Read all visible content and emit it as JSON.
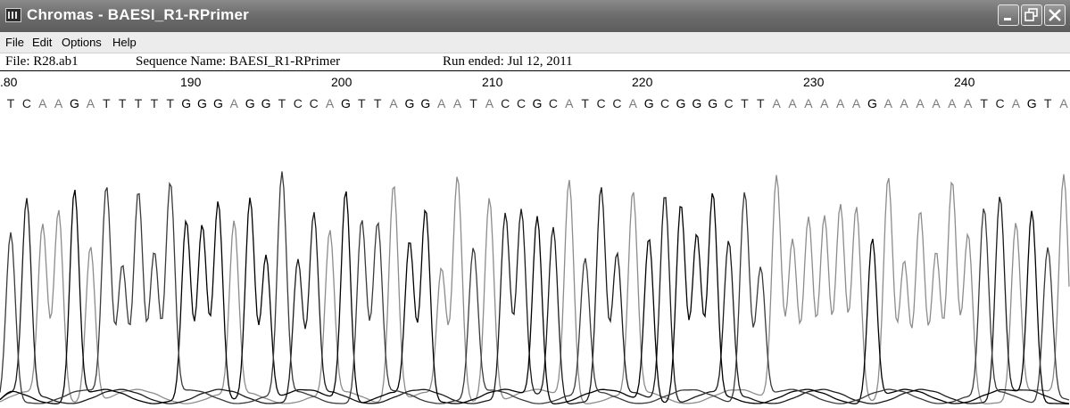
{
  "window": {
    "title": "Chromas - BAESI_R1-RPrimer",
    "icon": "chromas-app-icon",
    "controls": [
      "minimize-icon",
      "restore-icon",
      "close-icon"
    ]
  },
  "menu": [
    "File",
    "Edit",
    "Options",
    "Help"
  ],
  "info": {
    "file": "File: R28.ab1",
    "sequence_name": "Sequence Name: BAESI_R1-RPrimer",
    "run_ended": "Run ended: Jul 12, 2011"
  },
  "ruler": {
    "partial_label": ".80",
    "labels": [
      "190",
      "200",
      "210",
      "220",
      "230",
      "240"
    ]
  },
  "sequence": "TCAAGATTTTTGGGAGGTCCAGTTAGGAATACCGCATCCAGCGGGCTTAAAAAAGAAAAAATCAGTA",
  "colors": {
    "A": "#7a7a7a",
    "C": "#222222",
    "G": "#000000",
    "T": "#222222",
    "A_trace": "#8c8c8c",
    "C_trace": "#1a1a1a",
    "G_trace": "#000000",
    "T_trace": "#3a3a3a"
  }
}
